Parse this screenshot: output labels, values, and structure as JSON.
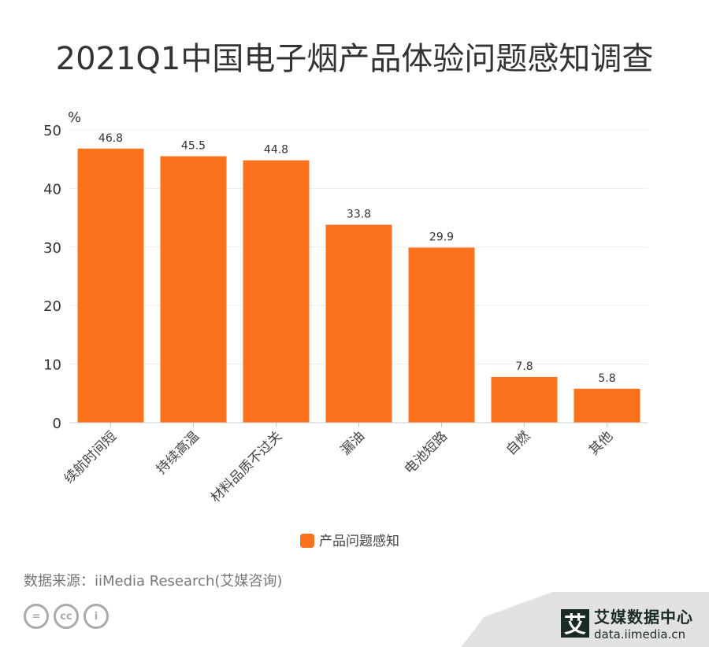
{
  "title": "2021Q1中国电子烟产品体验问题感知调查",
  "chart_data": {
    "type": "bar",
    "title": "2021Q1中国电子烟产品体验问题感知调查",
    "ylabel": "%",
    "ylim": [
      0,
      50
    ],
    "yticks": [
      0,
      10,
      20,
      30,
      40,
      50
    ],
    "categories": [
      "续航时间短",
      "持续高温",
      "材料品质不过关",
      "漏油",
      "电池短路",
      "自燃",
      "其他"
    ],
    "series": [
      {
        "name": "产品问题感知",
        "values": [
          46.8,
          45.5,
          44.8,
          33.8,
          29.9,
          7.8,
          5.8
        ],
        "color": "#fc711c"
      }
    ],
    "grid": true,
    "legend": "bottom"
  },
  "footer": {
    "source": "数据来源：iiMedia Research(艾媒咨询)",
    "logo_mark": "艾",
    "logo_name": "艾媒数据中心",
    "logo_url": "data.iimedia.cn",
    "cc_icons": [
      "equals-icon",
      "cc-icon",
      "person-icon"
    ]
  }
}
